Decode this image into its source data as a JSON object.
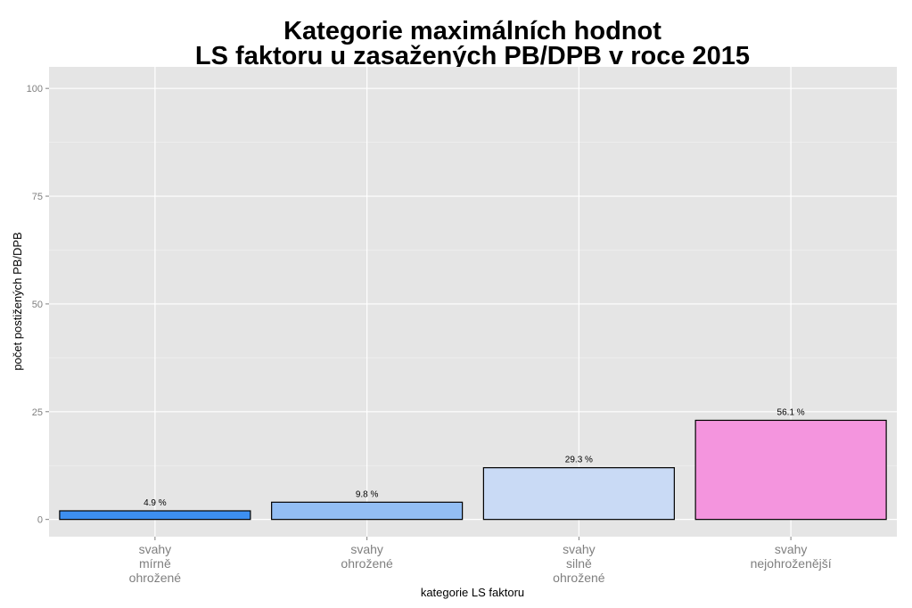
{
  "chart_data": {
    "type": "bar",
    "title_lines": [
      "Kategorie maximálních hodnot",
      "LS faktoru u zasažených PB/DPB v roce 2015"
    ],
    "xlabel": "kategorie LS faktoru",
    "ylabel": "počet postižených PB/DPB",
    "ylim": [
      -4,
      105
    ],
    "yticks": [
      "0",
      "25",
      "50",
      "75",
      "100"
    ],
    "ytick_values": [
      0,
      25,
      50,
      75,
      100
    ],
    "categories": [
      [
        "svahy",
        "mírně",
        "ohrožené"
      ],
      [
        "svahy",
        "ohrožené"
      ],
      [
        "svahy",
        "silně",
        "ohrožené"
      ],
      [
        "svahy",
        "nejohroženější"
      ]
    ],
    "values": [
      2,
      4,
      12,
      23
    ],
    "labels": [
      "4.9 %",
      "9.8 %",
      "29.3 %",
      "56.1 %"
    ],
    "colors": [
      "#3d8ff0",
      "#93bef4",
      "#c9daf5",
      "#f495de"
    ],
    "panel_color": "#e5e5e5",
    "grid": true
  }
}
